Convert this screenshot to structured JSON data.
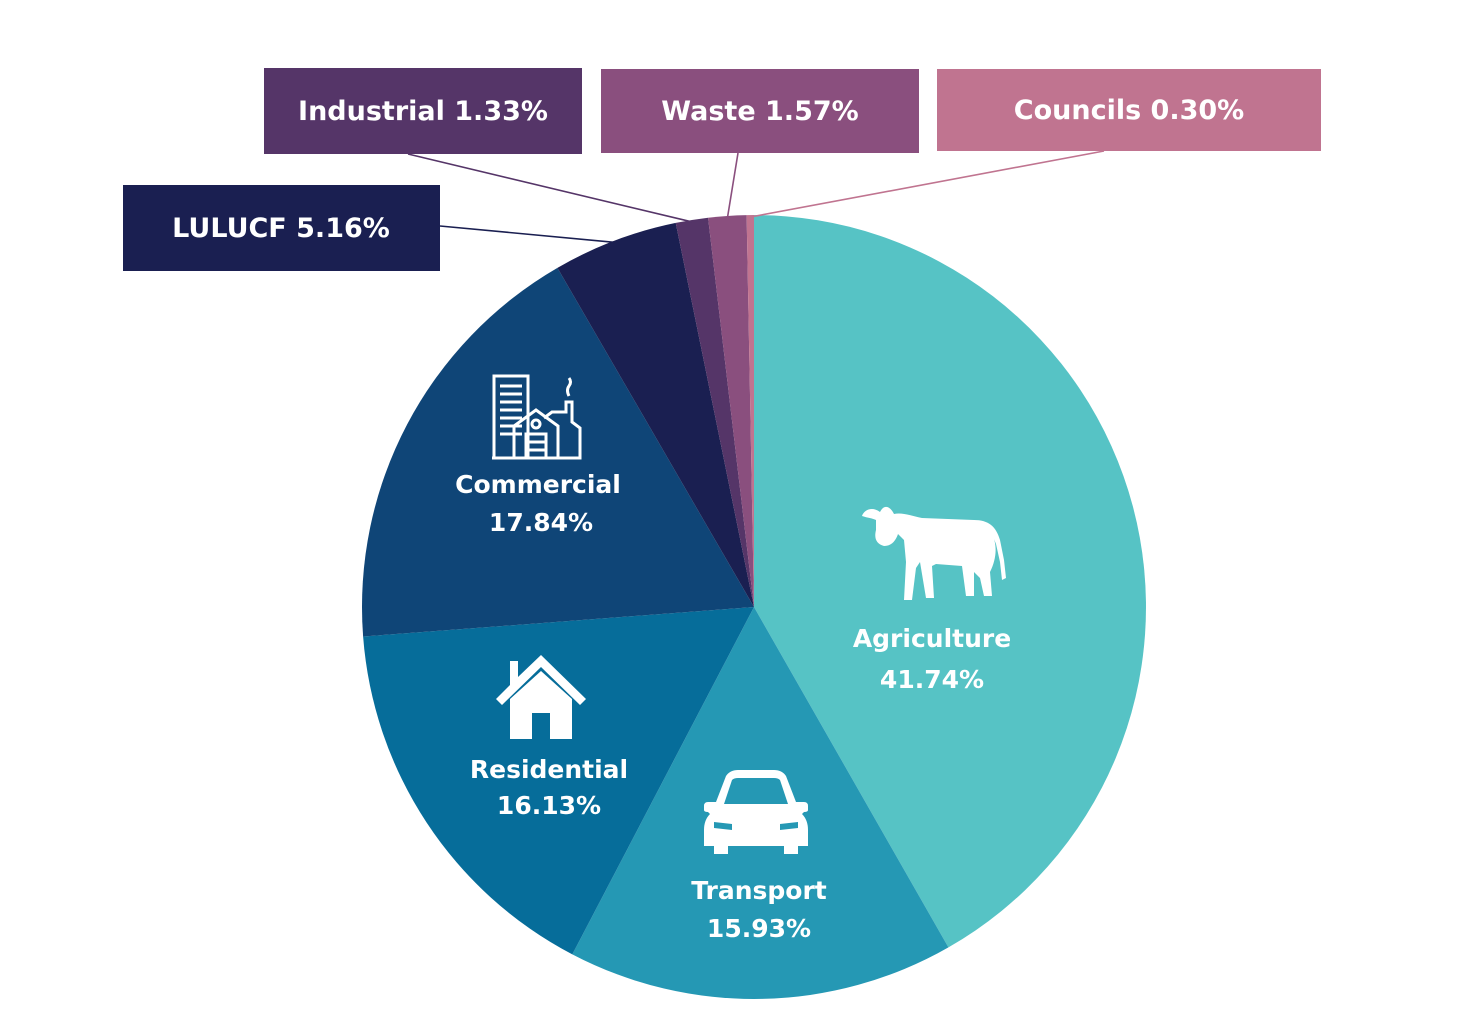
{
  "chart_data": {
    "type": "pie",
    "start": "top",
    "direction": "clockwise",
    "slices": [
      {
        "name": "Agriculture",
        "value_text": "41.74%",
        "value": 41.74,
        "color": "#56c3c5",
        "icon": "cow-icon",
        "label_style": "inside"
      },
      {
        "name": "Transport",
        "value_text": "15.93%",
        "value": 15.93,
        "color": "#2598b4",
        "icon": "car-icon",
        "label_style": "inside"
      },
      {
        "name": "Residential",
        "value_text": "16.13%",
        "value": 16.13,
        "color": "#066d9a",
        "icon": "house-icon",
        "label_style": "inside"
      },
      {
        "name": "Commercial",
        "value_text": "17.84%",
        "value": 17.84,
        "color": "#0f4577",
        "icon": "buildings-icon",
        "label_style": "inside"
      },
      {
        "name": "LULUCF",
        "value_text": "5.16%",
        "value": 5.16,
        "color": "#1a1f51",
        "label_style": "callout"
      },
      {
        "name": "Industrial",
        "value_text": "1.33%",
        "value": 1.33,
        "color": "#553568",
        "label_style": "callout"
      },
      {
        "name": "Waste",
        "value_text": "1.57%",
        "value": 1.57,
        "color": "#8a4f7e",
        "label_style": "callout"
      },
      {
        "name": "Councils",
        "value_text": "0.30%",
        "value": 0.3,
        "color": "#c07490",
        "label_style": "callout"
      }
    ]
  },
  "callouts": {
    "lulucf": "LULUCF  5.16%",
    "industrial": "Industrial 1.33%",
    "waste": "Waste 1.57%",
    "councils": "Councils  0.30%"
  }
}
